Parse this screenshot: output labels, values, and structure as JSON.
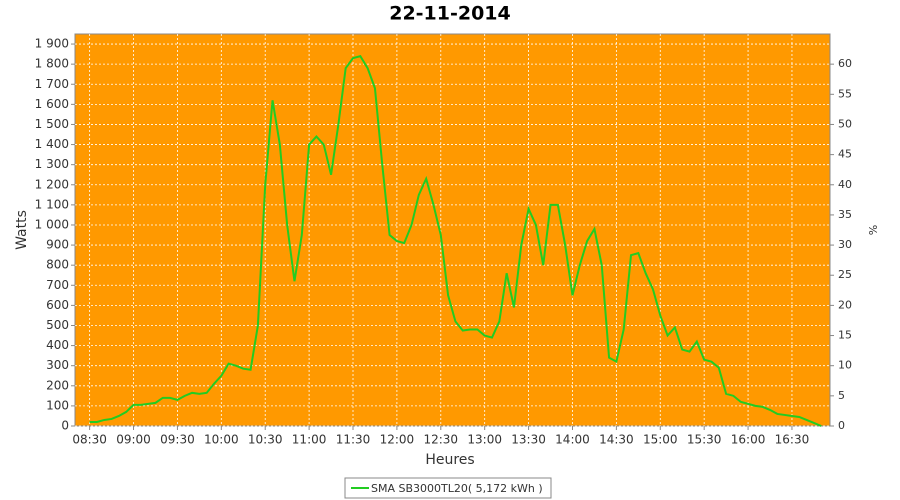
{
  "chart_data": {
    "type": "line",
    "title": "22-11-2014",
    "xlabel": "Heures",
    "ylabel": "Watts",
    "y2label": "%",
    "x": [
      "08:30",
      "08:35",
      "08:40",
      "08:45",
      "08:50",
      "08:55",
      "09:00",
      "09:05",
      "09:10",
      "09:15",
      "09:20",
      "09:25",
      "09:30",
      "09:35",
      "09:40",
      "09:45",
      "09:50",
      "09:55",
      "10:00",
      "10:05",
      "10:10",
      "10:15",
      "10:20",
      "10:25",
      "10:30",
      "10:35",
      "10:40",
      "10:45",
      "10:50",
      "10:55",
      "11:00",
      "11:05",
      "11:10",
      "11:15",
      "11:20",
      "11:25",
      "11:30",
      "11:35",
      "11:40",
      "11:45",
      "11:50",
      "11:55",
      "12:00",
      "12:05",
      "12:10",
      "12:15",
      "12:20",
      "12:25",
      "12:30",
      "12:35",
      "12:40",
      "12:45",
      "12:50",
      "12:55",
      "13:00",
      "13:05",
      "13:10",
      "13:15",
      "13:20",
      "13:25",
      "13:30",
      "13:35",
      "13:40",
      "13:45",
      "13:50",
      "13:55",
      "14:00",
      "14:05",
      "14:10",
      "14:15",
      "14:20",
      "14:25",
      "14:30",
      "14:35",
      "14:40",
      "14:45",
      "14:50",
      "14:55",
      "15:00",
      "15:05",
      "15:10",
      "15:15",
      "15:20",
      "15:25",
      "15:30",
      "15:35",
      "15:40",
      "15:45",
      "15:50",
      "15:55",
      "16:00",
      "16:05",
      "16:10",
      "16:15",
      "16:20",
      "16:25",
      "16:30",
      "16:35",
      "16:40",
      "16:45",
      "16:50"
    ],
    "series": [
      {
        "name": "SMA SB3000TL20( 5,172 kWh )",
        "color": "#22cc22",
        "values": [
          20,
          20,
          30,
          35,
          50,
          70,
          105,
          105,
          110,
          115,
          140,
          140,
          130,
          150,
          165,
          160,
          165,
          210,
          250,
          310,
          300,
          285,
          280,
          500,
          1200,
          1620,
          1400,
          1000,
          720,
          950,
          1400,
          1440,
          1400,
          1250,
          1500,
          1780,
          1830,
          1840,
          1780,
          1680,
          1300,
          950,
          920,
          910,
          1000,
          1150,
          1230,
          1100,
          950,
          650,
          520,
          475,
          480,
          480,
          450,
          440,
          520,
          760,
          590,
          900,
          1080,
          1000,
          800,
          1100,
          1100,
          900,
          650,
          800,
          920,
          980,
          800,
          340,
          320,
          480,
          850,
          860,
          760,
          680,
          550,
          450,
          490,
          380,
          370,
          420,
          330,
          320,
          290,
          160,
          150,
          120,
          110,
          100,
          95,
          80,
          60,
          55,
          50,
          45,
          30,
          15,
          0
        ]
      }
    ],
    "xlim": [
      "08:20",
      "16:56"
    ],
    "xticks": [
      "08:30",
      "09:00",
      "09:30",
      "10:00",
      "10:30",
      "11:00",
      "11:30",
      "12:00",
      "12:30",
      "13:00",
      "13:30",
      "14:00",
      "14:30",
      "15:00",
      "15:30",
      "16:00",
      "16:30"
    ],
    "ylim": [
      0,
      1950
    ],
    "yticks": [
      0,
      100,
      200,
      300,
      400,
      500,
      600,
      700,
      800,
      900,
      {
        "value": 1000,
        "label": "1 000"
      },
      {
        "value": 1100,
        "label": "1 100"
      },
      {
        "value": 1200,
        "label": "1 200"
      },
      {
        "value": 1300,
        "label": "1 300"
      },
      {
        "value": 1400,
        "label": "1 400"
      },
      {
        "value": 1500,
        "label": "1 500"
      },
      {
        "value": 1600,
        "label": "1 600"
      },
      {
        "value": 1700,
        "label": "1 700"
      },
      {
        "value": 1800,
        "label": "1 800"
      },
      {
        "value": 1900,
        "label": "1 900"
      }
    ],
    "y2lim": [
      0,
      65
    ],
    "y2ticks": [
      0,
      5,
      10,
      15,
      20,
      25,
      30,
      35,
      40,
      45,
      50,
      55,
      60
    ],
    "grid": true,
    "background": "#ff9900",
    "legend": "bottom"
  }
}
